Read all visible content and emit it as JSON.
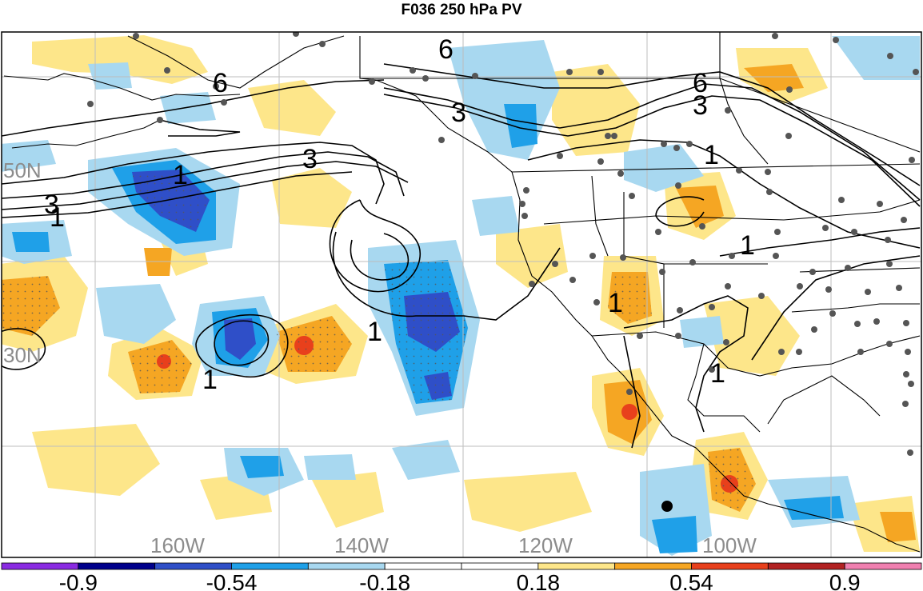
{
  "title": "F036 250 hPa PV",
  "map": {
    "lat_labels": [
      "50N",
      "30N"
    ],
    "lon_labels": [
      "160W",
      "140W",
      "120W",
      "100W"
    ],
    "contour_labels": [
      "6",
      "6",
      "6",
      "3",
      "3",
      "3",
      "3",
      "1",
      "1",
      "1",
      "1",
      "1",
      "1",
      "1",
      "1"
    ]
  },
  "colorbar": {
    "colors": [
      "#8a2be2",
      "#00008b",
      "#2f4fc8",
      "#1fa0e8",
      "#a8d8f0",
      "#ffffff",
      "#ffffff",
      "#fde68a",
      "#f5a623",
      "#e8401c",
      "#b22222",
      "#f080b0"
    ],
    "tick_labels": [
      "-0.9",
      "-0.54",
      "-0.18",
      "0.18",
      "0.54",
      "0.9"
    ]
  },
  "colors": {
    "grid": "#bdbdbd",
    "neg_light": "#a8d8f0",
    "neg_mid": "#1fa0e8",
    "neg_strong": "#2f4fc8",
    "pos_light": "#fde68a",
    "pos_mid": "#f5a623",
    "pos_strong": "#e8401c"
  }
}
